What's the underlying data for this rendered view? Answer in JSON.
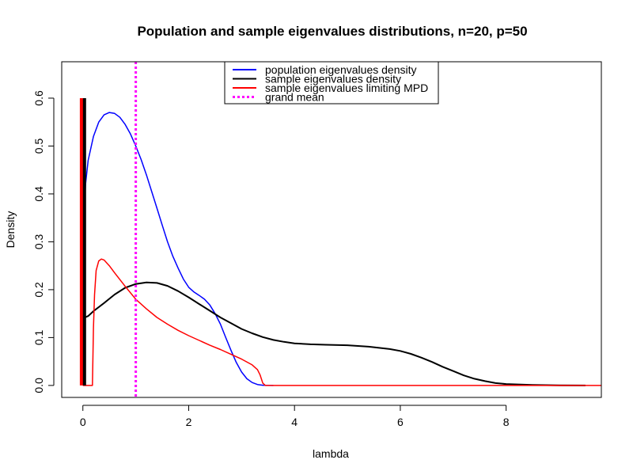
{
  "chart_data": {
    "type": "line",
    "title": "Population and sample eigenvalues distributions, n=20, p=50",
    "xlabel": "lambda",
    "ylabel": "Density",
    "xlim": [
      -0.4,
      9.8
    ],
    "ylim": [
      -0.025,
      0.676
    ],
    "x_ticks": [
      0,
      2,
      4,
      6,
      8
    ],
    "y_ticks": [
      0.0,
      0.1,
      0.2,
      0.3,
      0.4,
      0.5,
      0.6
    ],
    "grid": false,
    "legend": {
      "position": "top",
      "entries": [
        {
          "label": "population eigenvalues density",
          "color": "#0000ff",
          "dash": "solid",
          "width": 2
        },
        {
          "label": "sample eigenvalues density",
          "color": "#000000",
          "dash": "solid",
          "width": 2
        },
        {
          "label": "sample eigenvalues limiting MPD",
          "color": "#ff0000",
          "dash": "solid",
          "width": 2
        },
        {
          "label": "grand mean",
          "color": "#ff00ff",
          "dash": "dotted",
          "width": 3
        }
      ]
    },
    "series": [
      {
        "name": "population eigenvalues density",
        "color": "#0000ff",
        "width": 1.5,
        "points": [
          [
            0.0,
            0.29
          ],
          [
            0.05,
            0.42
          ],
          [
            0.1,
            0.47
          ],
          [
            0.2,
            0.52
          ],
          [
            0.3,
            0.55
          ],
          [
            0.4,
            0.565
          ],
          [
            0.5,
            0.57
          ],
          [
            0.6,
            0.568
          ],
          [
            0.7,
            0.56
          ],
          [
            0.8,
            0.545
          ],
          [
            0.9,
            0.525
          ],
          [
            1.0,
            0.5
          ],
          [
            1.1,
            0.472
          ],
          [
            1.2,
            0.44
          ],
          [
            1.3,
            0.405
          ],
          [
            1.4,
            0.37
          ],
          [
            1.5,
            0.335
          ],
          [
            1.6,
            0.3
          ],
          [
            1.7,
            0.27
          ],
          [
            1.8,
            0.245
          ],
          [
            1.9,
            0.222
          ],
          [
            2.0,
            0.205
          ],
          [
            2.1,
            0.195
          ],
          [
            2.2,
            0.188
          ],
          [
            2.3,
            0.18
          ],
          [
            2.4,
            0.168
          ],
          [
            2.5,
            0.15
          ],
          [
            2.6,
            0.128
          ],
          [
            2.7,
            0.1
          ],
          [
            2.8,
            0.073
          ],
          [
            2.9,
            0.048
          ],
          [
            3.0,
            0.028
          ],
          [
            3.1,
            0.014
          ],
          [
            3.2,
            0.006
          ],
          [
            3.3,
            0.002
          ],
          [
            3.4,
            0.0005
          ],
          [
            3.6,
            0.0
          ]
        ]
      },
      {
        "name": "sample eigenvalues density",
        "color": "#000000",
        "width": 2,
        "points": [
          [
            0.0,
            0.14
          ],
          [
            0.1,
            0.145
          ],
          [
            0.2,
            0.155
          ],
          [
            0.4,
            0.172
          ],
          [
            0.6,
            0.19
          ],
          [
            0.8,
            0.204
          ],
          [
            1.0,
            0.212
          ],
          [
            1.2,
            0.215
          ],
          [
            1.4,
            0.214
          ],
          [
            1.6,
            0.208
          ],
          [
            1.8,
            0.197
          ],
          [
            2.0,
            0.184
          ],
          [
            2.2,
            0.17
          ],
          [
            2.4,
            0.156
          ],
          [
            2.6,
            0.142
          ],
          [
            2.8,
            0.13
          ],
          [
            3.0,
            0.118
          ],
          [
            3.2,
            0.109
          ],
          [
            3.4,
            0.101
          ],
          [
            3.6,
            0.095
          ],
          [
            3.8,
            0.091
          ],
          [
            4.0,
            0.088
          ],
          [
            4.3,
            0.086
          ],
          [
            4.6,
            0.085
          ],
          [
            5.0,
            0.084
          ],
          [
            5.4,
            0.081
          ],
          [
            5.8,
            0.076
          ],
          [
            6.0,
            0.072
          ],
          [
            6.2,
            0.066
          ],
          [
            6.4,
            0.058
          ],
          [
            6.6,
            0.049
          ],
          [
            6.8,
            0.039
          ],
          [
            7.0,
            0.03
          ],
          [
            7.2,
            0.021
          ],
          [
            7.4,
            0.014
          ],
          [
            7.6,
            0.009
          ],
          [
            7.8,
            0.005
          ],
          [
            8.0,
            0.003
          ],
          [
            8.5,
            0.001
          ],
          [
            9.0,
            0.0002
          ],
          [
            9.5,
            0.0
          ]
        ]
      },
      {
        "name": "sample eigenvalues limiting MPD",
        "color": "#ff0000",
        "width": 1.5,
        "points": [
          [
            0.0,
            0.0
          ],
          [
            0.18,
            0.0
          ],
          [
            0.2,
            0.12
          ],
          [
            0.22,
            0.19
          ],
          [
            0.25,
            0.24
          ],
          [
            0.3,
            0.26
          ],
          [
            0.35,
            0.264
          ],
          [
            0.4,
            0.262
          ],
          [
            0.5,
            0.25
          ],
          [
            0.6,
            0.235
          ],
          [
            0.8,
            0.207
          ],
          [
            1.0,
            0.18
          ],
          [
            1.2,
            0.16
          ],
          [
            1.4,
            0.142
          ],
          [
            1.6,
            0.128
          ],
          [
            1.8,
            0.115
          ],
          [
            2.0,
            0.104
          ],
          [
            2.2,
            0.094
          ],
          [
            2.4,
            0.084
          ],
          [
            2.6,
            0.075
          ],
          [
            2.8,
            0.065
          ],
          [
            3.0,
            0.055
          ],
          [
            3.2,
            0.043
          ],
          [
            3.3,
            0.033
          ],
          [
            3.35,
            0.022
          ],
          [
            3.4,
            0.005
          ],
          [
            3.45,
            0.0
          ],
          [
            9.8,
            0.0
          ]
        ]
      },
      {
        "name": "sample point mass",
        "color": "#ff0000",
        "width": 5,
        "points": [
          [
            -0.02,
            0.0
          ],
          [
            -0.02,
            0.6
          ]
        ]
      },
      {
        "name": "sample point mass black",
        "color": "#000000",
        "width": 4,
        "points": [
          [
            0.03,
            0.0
          ],
          [
            0.03,
            0.6
          ]
        ]
      }
    ],
    "vlines": [
      {
        "name": "grand mean",
        "x": 1.0,
        "color": "#ff00ff",
        "dash": "dotted",
        "width": 3
      }
    ]
  }
}
